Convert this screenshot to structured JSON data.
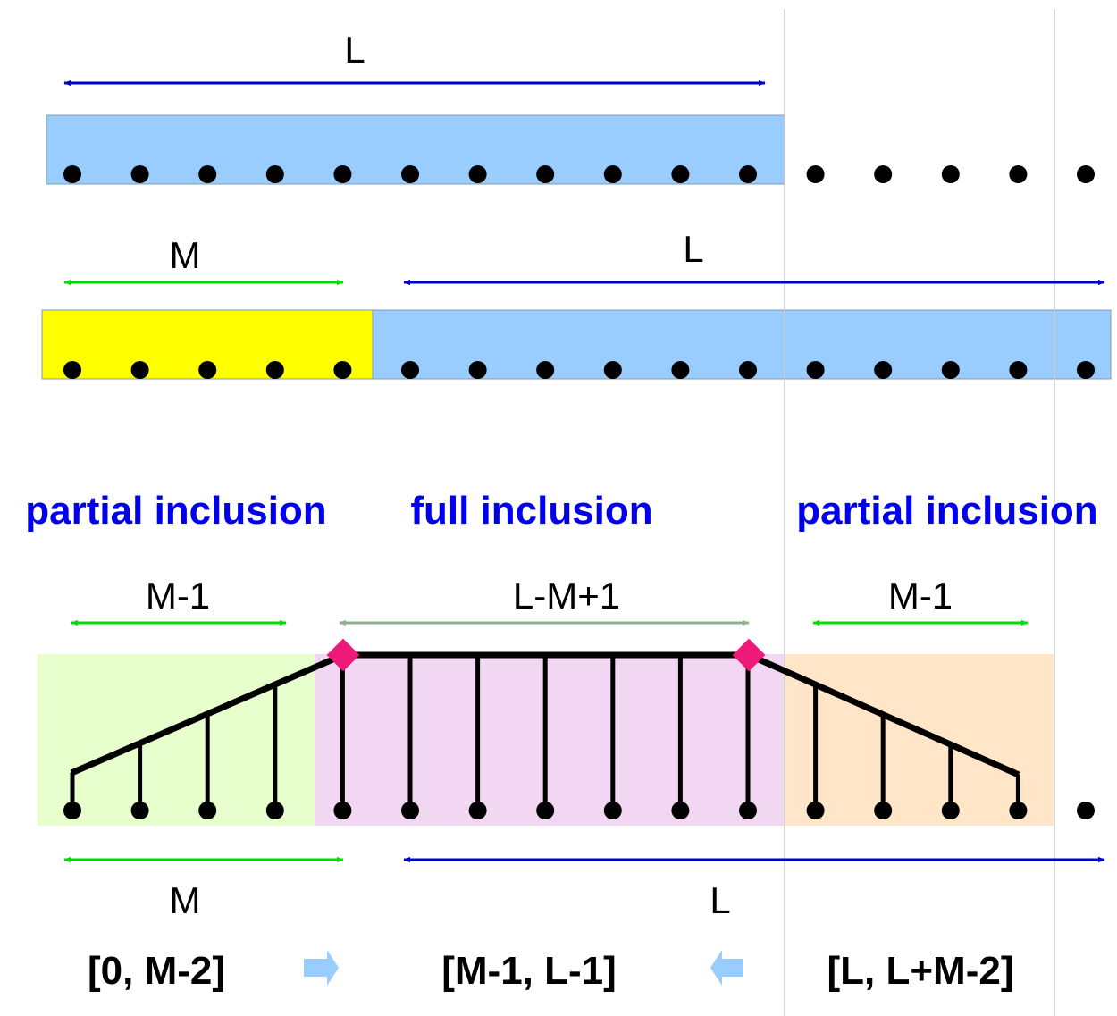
{
  "labels": {
    "row1_L": "L",
    "row2_M": "M",
    "row2_L": "L",
    "section_left": "partial inclusion",
    "section_mid": "full inclusion",
    "section_right": "partial inclusion",
    "span_left": "M-1",
    "span_mid": "L-M+1",
    "span_right": "M-1",
    "bottom_M": "M",
    "bottom_L": "L",
    "range_left": "[0, M-2]",
    "range_mid": "[M-1, L-1]",
    "range_right": "[L, L+M-2]"
  },
  "colors": {
    "blue_region": "#99ccff",
    "yellow_region": "#ffff00",
    "green_region": "#e6ffcc",
    "pink_region": "#f2d7f2",
    "orange_region": "#ffe6c8",
    "blue_arrow": "#0000cc",
    "green_arrow": "#00dd00",
    "sage_arrow": "#8fb08f",
    "section_text": "#0000ee",
    "marker": "#ee1a7a",
    "light_arrow": "#99ccff"
  },
  "diagram": {
    "sample_count": 16,
    "row1_window_samples": 11,
    "row2_yellow_samples": 5,
    "row2_blue_samples": 11,
    "rising_stems": 4,
    "flat_stems": 7,
    "falling_stems": 4
  }
}
